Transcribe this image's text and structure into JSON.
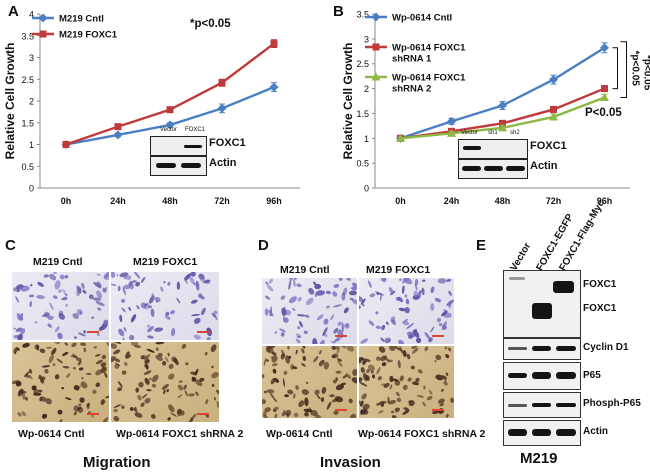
{
  "panels": {
    "A": "A",
    "B": "B",
    "C": "C",
    "D": "D",
    "E": "E"
  },
  "chart_data": [
    {
      "panel": "A",
      "type": "line",
      "ylabel": "Relative Cell Growth",
      "xlabel": "",
      "categories": [
        "0h",
        "24h",
        "48h",
        "72h",
        "96h"
      ],
      "ylim": [
        0,
        4
      ],
      "yticks": [
        "0",
        "0.5",
        "1",
        "1.5",
        "2",
        "2.5",
        "3",
        "3.5",
        "4"
      ],
      "grid": false,
      "legend_position": "top-left",
      "series": [
        {
          "name": "M219 Cntl",
          "color": "#4a7fc4",
          "marker": "diamond",
          "values": [
            1.0,
            1.22,
            1.45,
            1.83,
            2.32
          ],
          "errors": [
            0.02,
            0.04,
            0.05,
            0.1,
            0.1
          ]
        },
        {
          "name": "M219 FOXC1",
          "color": "#c0393b",
          "marker": "square",
          "values": [
            1.0,
            1.41,
            1.8,
            2.42,
            3.32
          ],
          "errors": [
            0.02,
            0.04,
            0.05,
            0.08,
            0.09
          ]
        }
      ],
      "annotations": [
        "*p<0.05"
      ],
      "inset": {
        "lanes": [
          "Vector",
          "FOXC1"
        ],
        "rows": [
          "FOXC1",
          "Actin"
        ]
      }
    },
    {
      "panel": "B",
      "type": "line",
      "ylabel": "Relative Cell Growth",
      "xlabel": "",
      "categories": [
        "0h",
        "24h",
        "48h",
        "72h",
        "96h"
      ],
      "ylim": [
        0,
        3.5
      ],
      "yticks": [
        "0",
        "0.5",
        "1",
        "1.5",
        "2",
        "2.5",
        "3",
        "3.5"
      ],
      "grid": false,
      "legend_position": "top-left",
      "series": [
        {
          "name": "Wp-0614  Cntl",
          "color": "#4a7fc4",
          "marker": "diamond",
          "values": [
            1.0,
            1.34,
            1.66,
            2.18,
            2.82
          ],
          "errors": [
            0.02,
            0.06,
            0.08,
            0.09,
            0.1
          ]
        },
        {
          "name": "Wp-0614  FOXC1 shRNA 1",
          "color": "#c0393b",
          "marker": "square",
          "values": [
            1.0,
            1.14,
            1.3,
            1.58,
            2.0
          ],
          "errors": [
            0.02,
            0.04,
            0.05,
            0.06,
            0.06
          ]
        },
        {
          "name": "Wp-0614  FOXC1 shRNA 2",
          "color": "#8db845",
          "marker": "triangle",
          "values": [
            1.0,
            1.1,
            1.21,
            1.43,
            1.82
          ],
          "errors": [
            0.02,
            0.04,
            0.05,
            0.06,
            0.06
          ]
        }
      ],
      "annotations": [
        "*p<0.05",
        "*p<0.05",
        "P<0.05"
      ],
      "inset": {
        "lanes": [
          "Vector",
          "sh1",
          "sh2"
        ],
        "rows": [
          "FOXC1",
          "Actin"
        ]
      }
    }
  ],
  "panel_c": {
    "top_left": "M219 Cntl",
    "top_right": "M219 FOXC1",
    "bottom_left": "Wp-0614 Cntl",
    "bottom_right": "Wp-0614  FOXC1 shRNA 2",
    "footer": "Migration"
  },
  "panel_d": {
    "top_left": "M219 Cntl",
    "top_right": "M219 FOXC1",
    "bottom_left": "Wp-0614 Cntl",
    "bottom_right": "Wp-0614  FOXC1 shRNA  2",
    "footer": "Invasion"
  },
  "panel_e": {
    "lanes": [
      "Vector",
      "FOXC1-EGFP",
      "FOXC1-Flag-Myc"
    ],
    "blots": [
      "FOXC1",
      "FOXC1",
      "Cyclin D1",
      "P65",
      "Phosph-P65",
      "Actin"
    ],
    "footer": "M219"
  }
}
